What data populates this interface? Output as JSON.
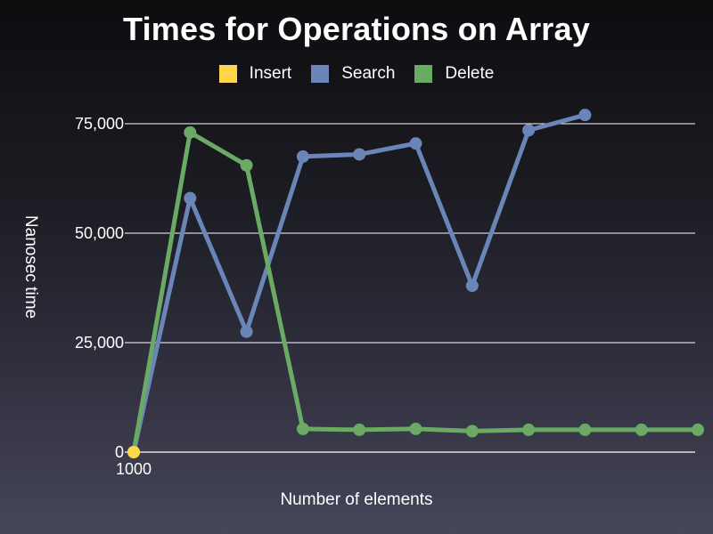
{
  "chart_data": {
    "type": "line",
    "title": "Times for Operations on Array",
    "xlabel": "Number of elements",
    "ylabel": "Nanosec time",
    "x_tick_labels": [
      "1000"
    ],
    "y_ticks": [
      0,
      25000,
      50000,
      75000
    ],
    "y_tick_labels": [
      "0",
      "25,000",
      "50,000",
      "75,000"
    ],
    "ylim": [
      0,
      75000
    ],
    "grid": true,
    "legend_position": "top",
    "series": [
      {
        "name": "Insert",
        "color": "#ffd54a",
        "values": [
          0
        ]
      },
      {
        "name": "Search",
        "color": "#6a86b8",
        "values": [
          0,
          58000,
          27500,
          67500,
          68000,
          70500,
          38000,
          73500,
          77000
        ]
      },
      {
        "name": "Delete",
        "color": "#6aaa64",
        "values": [
          0,
          73000,
          65500,
          5300,
          5100,
          5300,
          4800,
          5100,
          5100,
          5100,
          5100
        ]
      }
    ]
  }
}
